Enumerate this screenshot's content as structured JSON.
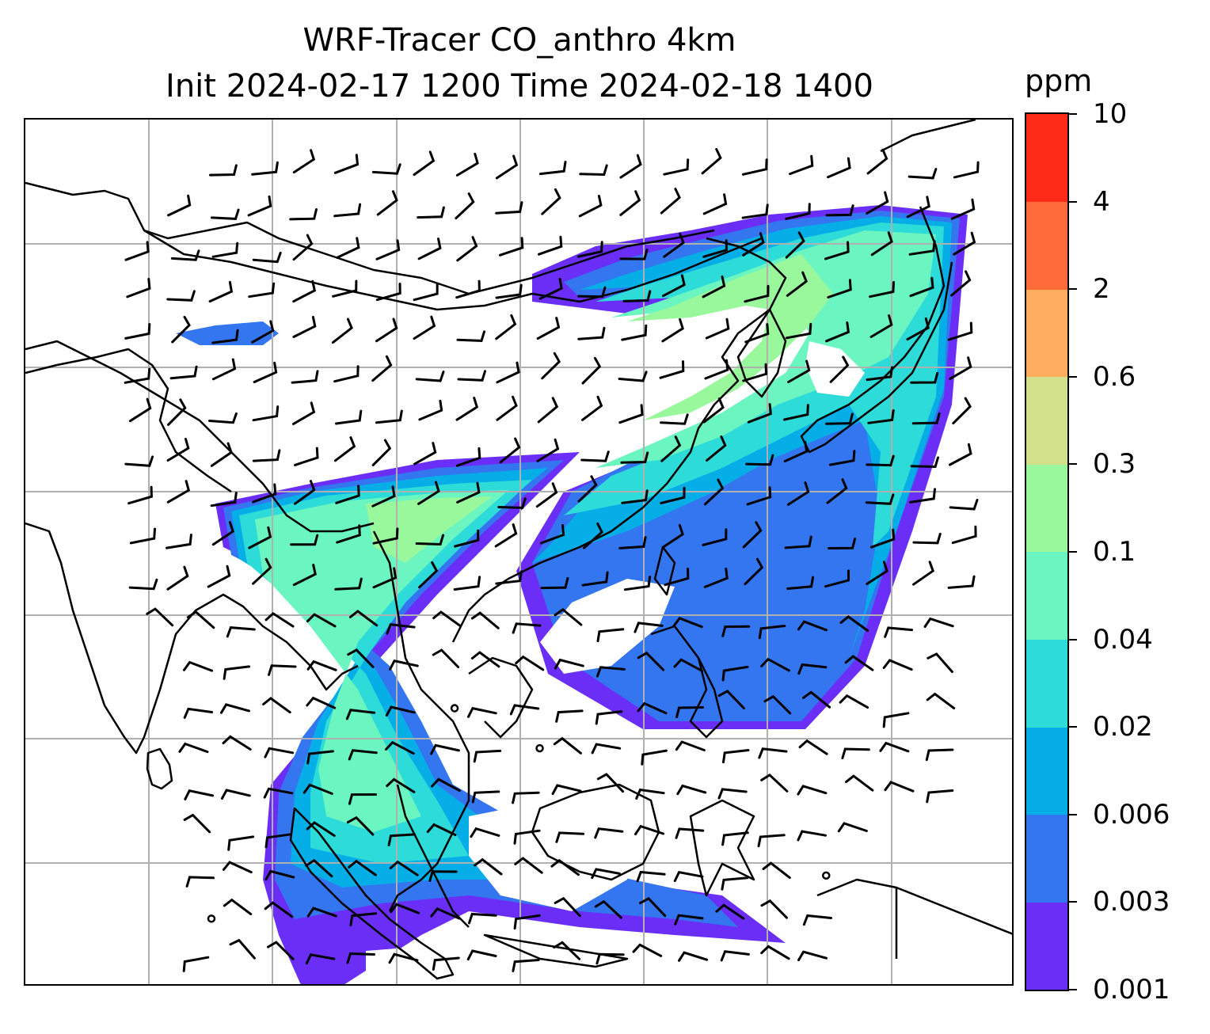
{
  "figure": {
    "title_line1": "WRF-Tracer CO_anthro 4km",
    "title_line2": "Init 2024-02-17 1200 Time 2024-02-18 1400"
  },
  "colorbar": {
    "unit": "ppm",
    "levels": [
      "0.001",
      "0.003",
      "0.006",
      "0.02",
      "0.04",
      "0.1",
      "0.3",
      "0.6",
      "2",
      "4",
      "10"
    ],
    "colors": [
      "#6a2ef7",
      "#3475f0",
      "#06aee7",
      "#2ddbd8",
      "#6bf5c0",
      "#99f79c",
      "#d2e08c",
      "#ffac5e",
      "#ff6c3a",
      "#ff2a18"
    ]
  },
  "map": {
    "gridlines": true,
    "grid_color": "#b0b0b0",
    "coastline_color": "#000000",
    "wind_barb_color": "#000000",
    "overlay": "wind-barbs",
    "plume_shading": "CO_anthro concentration"
  }
}
